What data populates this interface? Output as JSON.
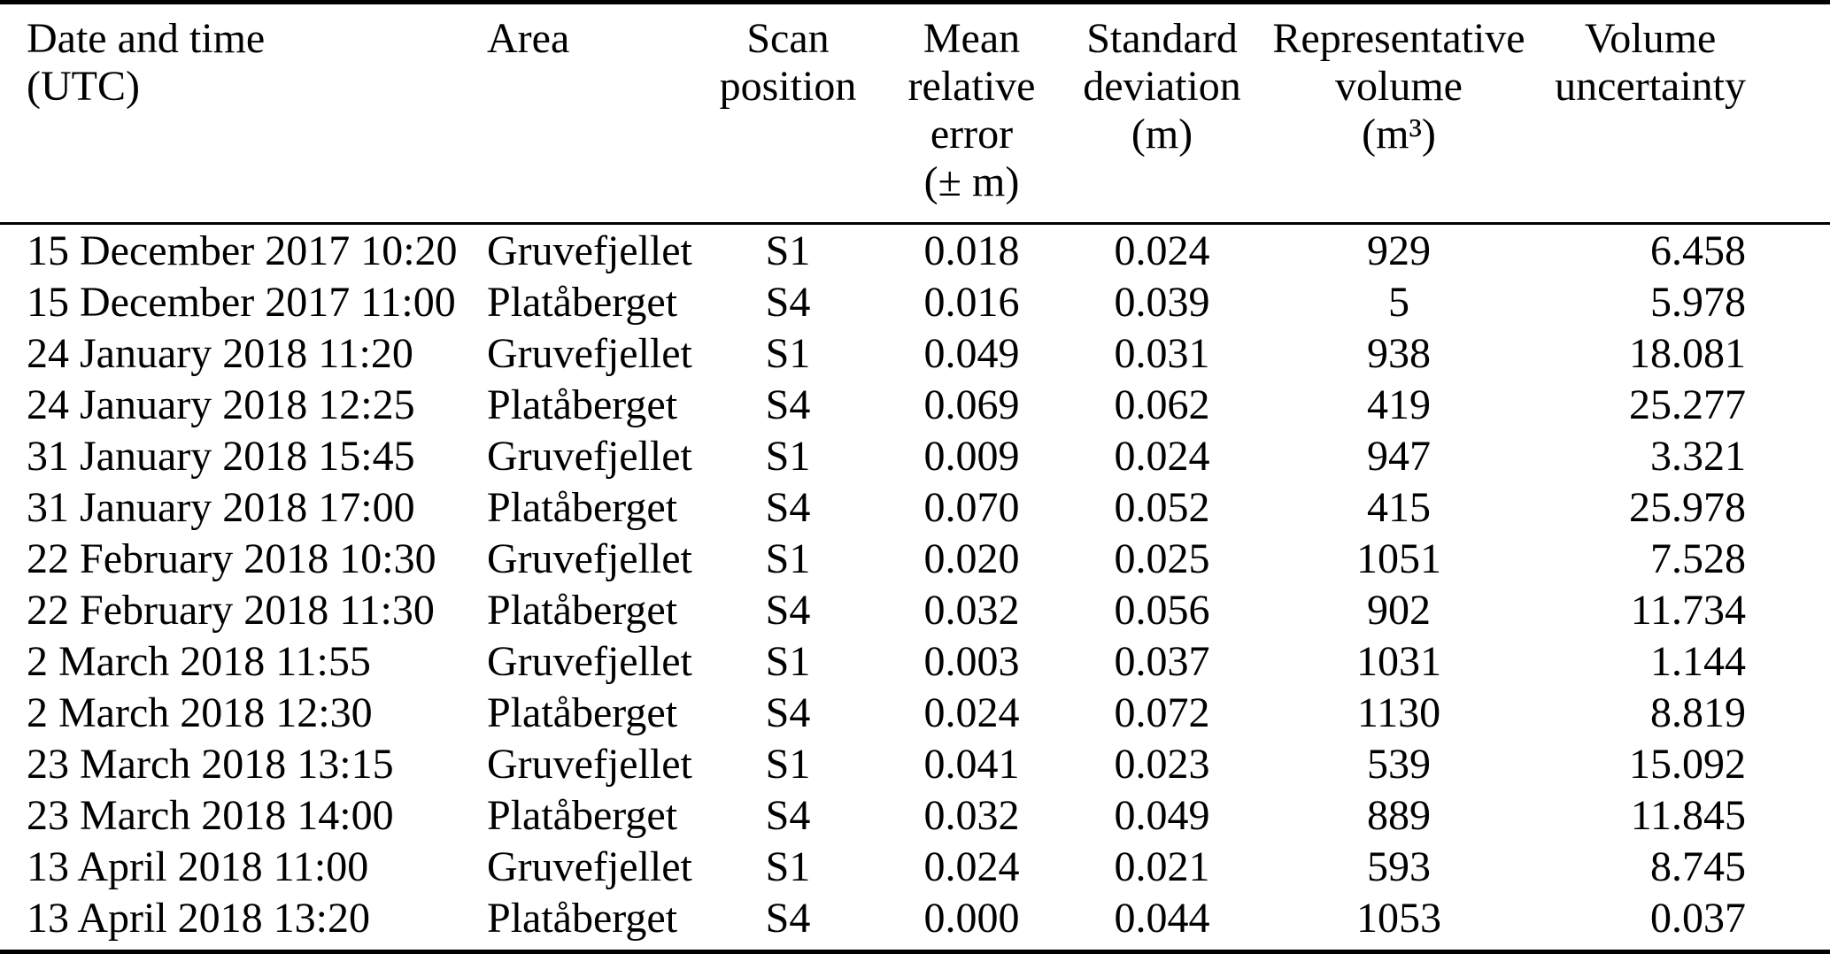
{
  "table": {
    "colors": {
      "text": "#000000",
      "background": "#ffffff",
      "rule": "#000000"
    },
    "headers": [
      {
        "lines": [
          "Date and time",
          "(UTC)"
        ]
      },
      {
        "lines": [
          "Area"
        ]
      },
      {
        "lines": [
          "Scan",
          "position"
        ]
      },
      {
        "lines": [
          "Mean",
          "relative",
          "error",
          "(± m)"
        ]
      },
      {
        "lines": [
          "Standard",
          "deviation",
          "(m)"
        ]
      },
      {
        "lines": [
          "Representative",
          "volume",
          "(m³)"
        ]
      },
      {
        "lines": [
          "Volume",
          "uncertainty"
        ]
      }
    ],
    "rows": [
      [
        "15 December 2017 10:20",
        "Gruvefjellet",
        "S1",
        "0.018",
        "0.024",
        "929",
        "6.458"
      ],
      [
        "15 December 2017 11:00",
        "Platåberget",
        "S4",
        "0.016",
        "0.039",
        "5",
        "5.978"
      ],
      [
        "24 January 2018 11:20",
        "Gruvefjellet",
        "S1",
        "0.049",
        "0.031",
        "938",
        "18.081"
      ],
      [
        "24 January 2018 12:25",
        "Platåberget",
        "S4",
        "0.069",
        "0.062",
        "419",
        "25.277"
      ],
      [
        "31 January 2018 15:45",
        "Gruvefjellet",
        "S1",
        "0.009",
        "0.024",
        "947",
        "3.321"
      ],
      [
        "31 January 2018 17:00",
        "Platåberget",
        "S4",
        "0.070",
        "0.052",
        "415",
        "25.978"
      ],
      [
        "22 February 2018 10:30",
        "Gruvefjellet",
        "S1",
        "0.020",
        "0.025",
        "1051",
        "7.528"
      ],
      [
        "22 February 2018 11:30",
        "Platåberget",
        "S4",
        "0.032",
        "0.056",
        "902",
        "11.734"
      ],
      [
        "2 March 2018 11:55",
        "Gruvefjellet",
        "S1",
        "0.003",
        "0.037",
        "1031",
        "1.144"
      ],
      [
        "2 March 2018 12:30",
        "Platåberget",
        "S4",
        "0.024",
        "0.072",
        "1130",
        "8.819"
      ],
      [
        "23 March 2018 13:15",
        "Gruvefjellet",
        "S1",
        "0.041",
        "0.023",
        "539",
        "15.092"
      ],
      [
        "23 March 2018 14:00",
        "Platåberget",
        "S4",
        "0.032",
        "0.049",
        "889",
        "11.845"
      ],
      [
        "13 April 2018 11:00",
        "Gruvefjellet",
        "S1",
        "0.024",
        "0.021",
        "593",
        "8.745"
      ],
      [
        "13 April 2018 13:20",
        "Platåberget",
        "S4",
        "0.000",
        "0.044",
        "1053",
        "0.037"
      ]
    ]
  }
}
